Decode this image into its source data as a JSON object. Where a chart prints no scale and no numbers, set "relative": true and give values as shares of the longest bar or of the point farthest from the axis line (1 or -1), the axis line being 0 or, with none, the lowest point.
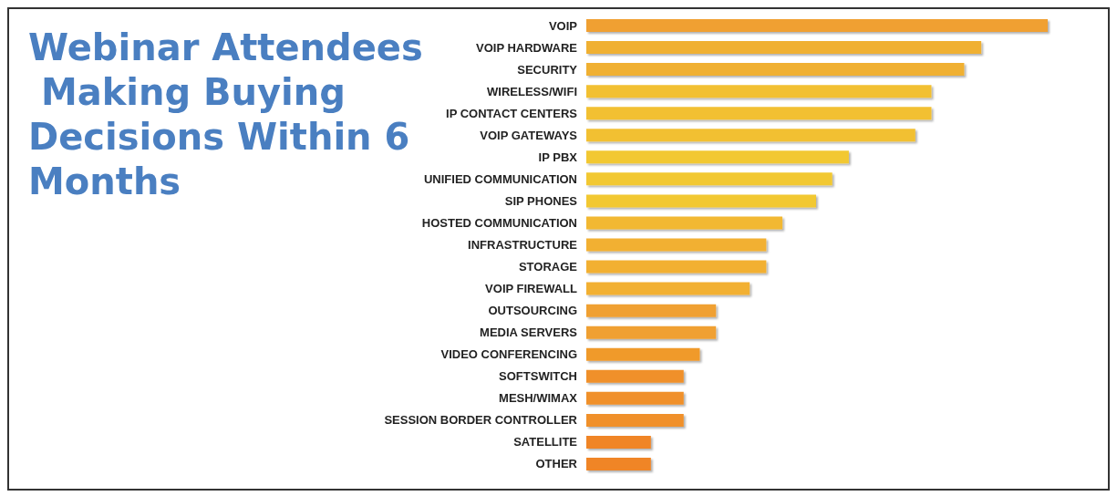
{
  "chart_data": {
    "type": "bar",
    "orientation": "horizontal",
    "relative": true,
    "title": "Webinar Attendees Making Buying Decisions Within 6 Months",
    "categories": [
      "VOIP",
      "VOIP HARDWARE",
      "SECURITY",
      "WIRELESS/WIFI",
      "IP CONTACT CENTERS",
      "VOIP GATEWAYS",
      "IP PBX",
      "UNIFIED COMMUNICATION",
      "SIP PHONES",
      "HOSTED COMMUNICATION",
      "INFRASTRUCTURE",
      "STORAGE",
      "VOIP FIREWALL",
      "OUTSOURCING",
      "MEDIA SERVERS",
      "VIDEO CONFERENCING",
      "SOFTSWITCH",
      "MESH/WIMAX",
      "SESSION BORDER CONTROLLER",
      "SATELLITE",
      "OTHER"
    ],
    "values": [
      1,
      0.856,
      0.819,
      0.748,
      0.748,
      0.713,
      0.569,
      0.533,
      0.498,
      0.425,
      0.39,
      0.39,
      0.354,
      0.281,
      0.281,
      0.246,
      0.211,
      0.211,
      0.211,
      0.14,
      0.14
    ],
    "colors": [
      "#f0a030",
      "#f0b030",
      "#f0b030",
      "#f2c030",
      "#f2c030",
      "#f2c030",
      "#f2c830",
      "#f2c830",
      "#f2c830",
      "#f2b830",
      "#f2b030",
      "#f2b030",
      "#f2b030",
      "#f0a030",
      "#f0a030",
      "#f09a2c",
      "#f0902a",
      "#f0902a",
      "#f0902a",
      "#f08528",
      "#f08528"
    ]
  }
}
